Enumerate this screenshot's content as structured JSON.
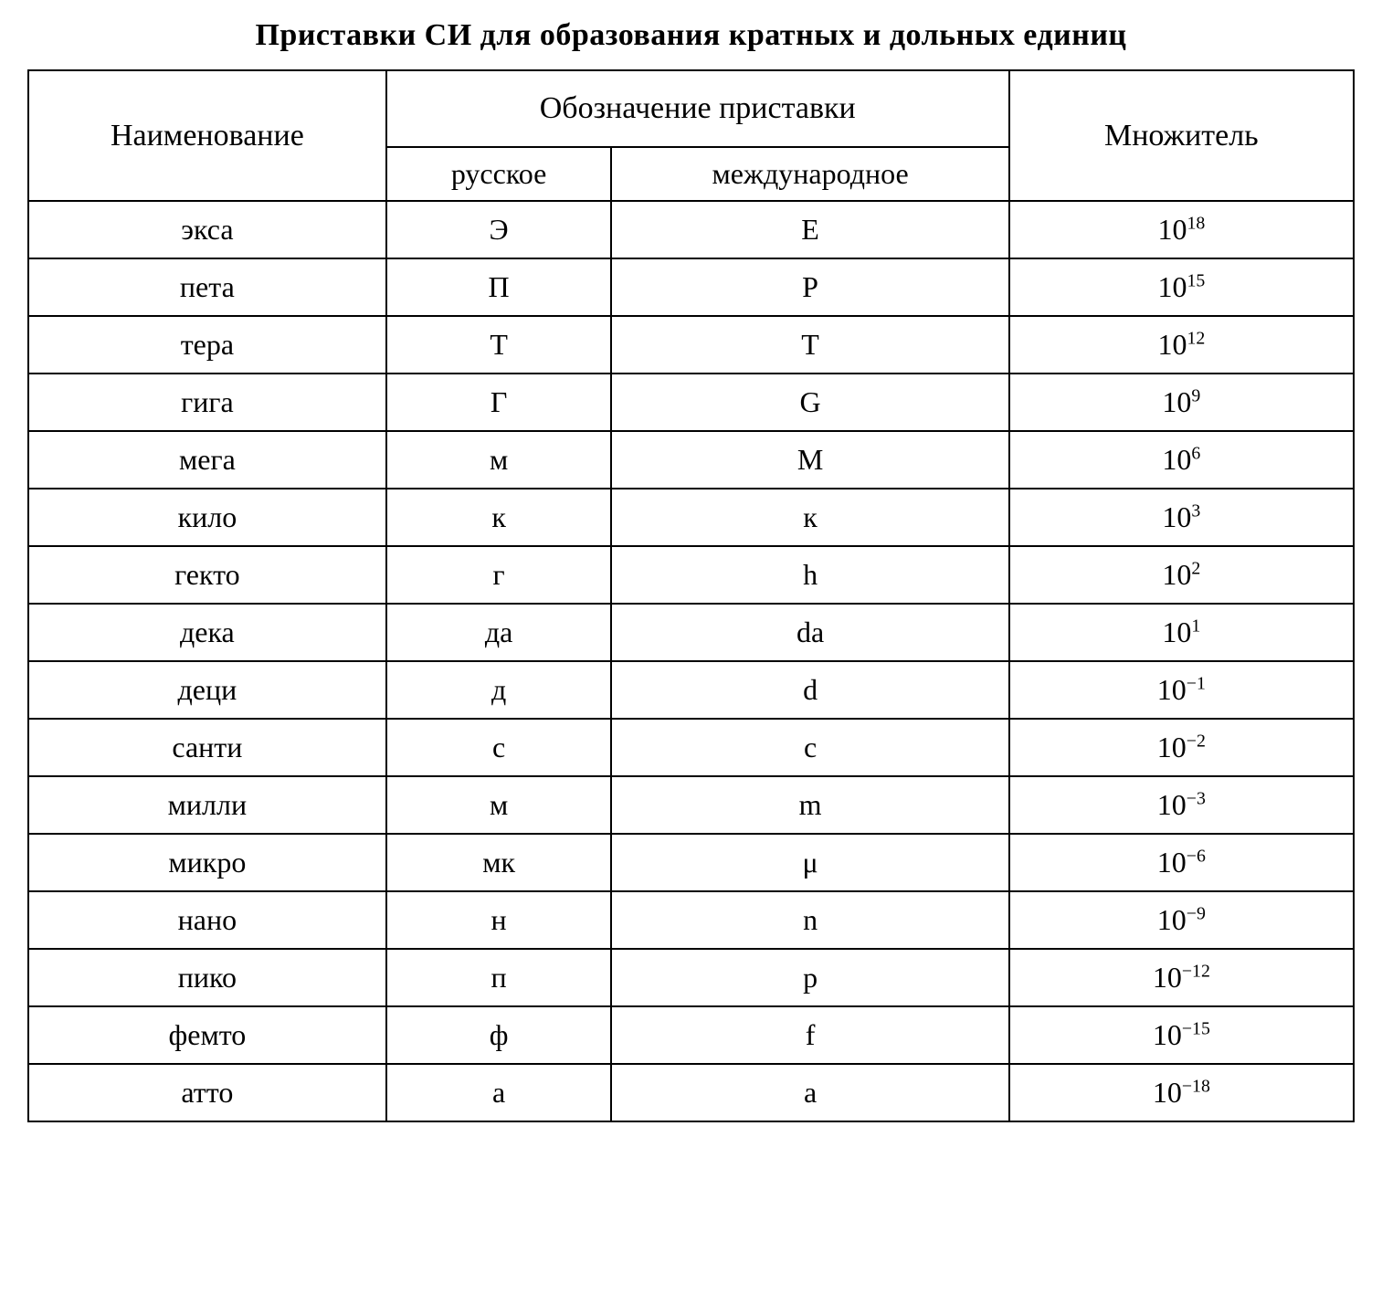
{
  "title": "Приставки СИ для образования кратных и дольных единиц",
  "table": {
    "type": "table",
    "background_color": "#ffffff",
    "border_color": "#000000",
    "text_color": "#000000",
    "font_family": "Times New Roman, serif",
    "title_fontsize": 34,
    "header_fontsize": 34,
    "cell_fontsize": 32,
    "column_widths_pct": [
      27,
      17,
      30,
      26
    ],
    "headers": {
      "name": "Наименование",
      "symbol_group": "Обозначение приставки",
      "russian": "русское",
      "international": "международное",
      "multiplier": "Множитель"
    },
    "rows": [
      {
        "name": "экса",
        "ru": "Э",
        "intl": "E",
        "base": "10",
        "exp": "18"
      },
      {
        "name": "пета",
        "ru": "П",
        "intl": "P",
        "base": "10",
        "exp": "15"
      },
      {
        "name": "тера",
        "ru": "Т",
        "intl": "T",
        "base": "10",
        "exp": "12"
      },
      {
        "name": "гига",
        "ru": "Г",
        "intl": "G",
        "base": "10",
        "exp": "9"
      },
      {
        "name": "мега",
        "ru": "м",
        "intl": "M",
        "base": "10",
        "exp": "6"
      },
      {
        "name": "кило",
        "ru": "к",
        "intl": "к",
        "base": "10",
        "exp": "3"
      },
      {
        "name": "гекто",
        "ru": "г",
        "intl": "h",
        "base": "10",
        "exp": "2"
      },
      {
        "name": "дека",
        "ru": "да",
        "intl": "da",
        "base": "10",
        "exp": "1"
      },
      {
        "name": "деци",
        "ru": "д",
        "intl": "d",
        "base": "10",
        "exp": "−1"
      },
      {
        "name": "санти",
        "ru": "с",
        "intl": "c",
        "base": "10",
        "exp": "−2"
      },
      {
        "name": "милли",
        "ru": "м",
        "intl": "m",
        "base": "10",
        "exp": "−3"
      },
      {
        "name": "микро",
        "ru": "мк",
        "intl": "μ",
        "base": "10",
        "exp": "−6"
      },
      {
        "name": "нано",
        "ru": "н",
        "intl": "n",
        "base": "10",
        "exp": "−9"
      },
      {
        "name": "пико",
        "ru": "п",
        "intl": "p",
        "base": "10",
        "exp": "−12"
      },
      {
        "name": "фемто",
        "ru": "ф",
        "intl": "f",
        "base": "10",
        "exp": "−15"
      },
      {
        "name": "атто",
        "ru": "а",
        "intl": "a",
        "base": "10",
        "exp": "−18"
      }
    ]
  }
}
